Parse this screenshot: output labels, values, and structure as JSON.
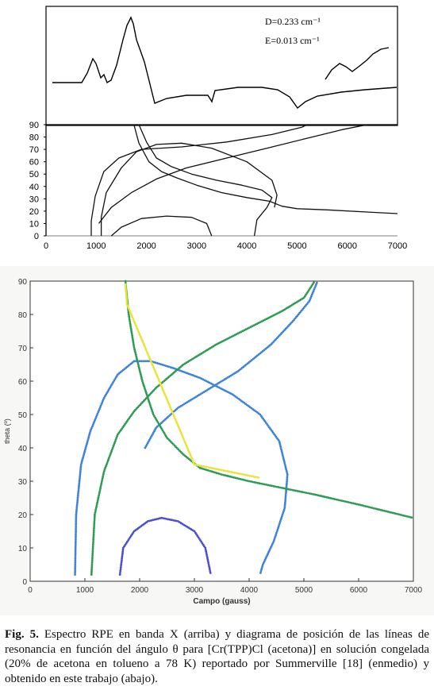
{
  "spectrum": {
    "annotation_d": "D=0.233 cm⁻¹",
    "annotation_e": "E=0.013 cm⁻¹"
  },
  "chart_data": [
    {
      "type": "line",
      "title": "",
      "xlabel": "",
      "ylabel": "",
      "xlim": [
        0,
        7000
      ],
      "ylim": [
        0,
        90
      ],
      "x_ticks": [
        0,
        1000,
        2000,
        3000,
        4000,
        5000,
        6000,
        7000
      ],
      "y_ticks": [
        0,
        10,
        20,
        30,
        40,
        50,
        60,
        70,
        80,
        90
      ],
      "series": [
        {
          "color": "#111111",
          "points": [
            [
              1750,
              90
            ],
            [
              1850,
              75
            ],
            [
              2050,
              60
            ],
            [
              2300,
              52
            ],
            [
              2600,
              47
            ],
            [
              3000,
              41
            ],
            [
              3500,
              35
            ],
            [
              4000,
              31
            ],
            [
              4450,
              28
            ],
            [
              4700,
              24
            ],
            [
              5000,
              22
            ],
            [
              5600,
              21
            ],
            [
              6500,
              19
            ],
            [
              7000,
              18
            ]
          ]
        },
        {
          "color": "#111111",
          "points": [
            [
              1850,
              90
            ],
            [
              2000,
              76
            ],
            [
              2200,
              63
            ],
            [
              2500,
              56
            ],
            [
              2900,
              50
            ],
            [
              3400,
              45
            ],
            [
              3900,
              41
            ],
            [
              4300,
              37
            ],
            [
              4500,
              31
            ],
            [
              4400,
              23
            ],
            [
              4200,
              13
            ],
            [
              4150,
              0
            ]
          ]
        },
        {
          "color": "#111111",
          "points": [
            [
              1100,
              0
            ],
            [
              1100,
              15
            ],
            [
              1200,
              35
            ],
            [
              1500,
              55
            ],
            [
              1800,
              68
            ],
            [
              2200,
              74
            ],
            [
              2700,
              75
            ],
            [
              3300,
              71
            ],
            [
              4000,
              60
            ],
            [
              4500,
              45
            ],
            [
              4600,
              33
            ],
            [
              4550,
              23
            ]
          ]
        },
        {
          "color": "#111111",
          "points": [
            [
              900,
              0
            ],
            [
              900,
              12
            ],
            [
              980,
              32
            ],
            [
              1150,
              52
            ],
            [
              1450,
              63
            ],
            [
              1900,
              70
            ],
            [
              2700,
              72
            ],
            [
              3600,
              76
            ],
            [
              4500,
              82
            ],
            [
              5100,
              88
            ],
            [
              5200,
              90
            ]
          ]
        },
        {
          "color": "#111111",
          "points": [
            [
              1050,
              10
            ],
            [
              1300,
              23
            ],
            [
              1700,
              35
            ],
            [
              2200,
              46
            ],
            [
              2800,
              55
            ],
            [
              3600,
              63
            ],
            [
              4400,
              71
            ],
            [
              5200,
              79
            ],
            [
              5900,
              86
            ],
            [
              6400,
              90
            ]
          ]
        },
        {
          "color": "#111111",
          "points": [
            [
              1300,
              0
            ],
            [
              1500,
              7
            ],
            [
              1900,
              14
            ],
            [
              2400,
              16
            ],
            [
              2900,
              15
            ],
            [
              3200,
              10
            ],
            [
              3300,
              0
            ]
          ]
        }
      ]
    },
    {
      "type": "scatter",
      "title": "",
      "xlabel": "Campo (gauss)",
      "ylabel": "theta (º)",
      "xlim": [
        0,
        7000
      ],
      "ylim": [
        0,
        90
      ],
      "x_ticks": [
        0,
        1000,
        2000,
        3000,
        4000,
        5000,
        6000,
        7000
      ],
      "y_ticks": [
        0,
        10,
        20,
        30,
        40,
        50,
        60,
        70,
        80,
        90
      ],
      "series": [
        {
          "color": "#3f83d8",
          "points": [
            [
              820,
              2
            ],
            [
              840,
              20
            ],
            [
              930,
              35
            ],
            [
              1100,
              45
            ],
            [
              1350,
              55
            ],
            [
              1600,
              62
            ],
            [
              1900,
              66
            ],
            [
              2200,
              66
            ],
            [
              2600,
              64
            ],
            [
              3100,
              61
            ],
            [
              3700,
              56
            ],
            [
              4200,
              50
            ],
            [
              4550,
              42
            ],
            [
              4700,
              32
            ],
            [
              4650,
              22
            ],
            [
              4450,
              12
            ],
            [
              4250,
              5
            ],
            [
              4200,
              2
            ]
          ]
        },
        {
          "color": "#3f83d8",
          "points": [
            [
              2100,
              40
            ],
            [
              2300,
              46
            ],
            [
              2700,
              52
            ],
            [
              3200,
              57
            ],
            [
              3800,
              63
            ],
            [
              4400,
              71
            ],
            [
              4800,
              78
            ],
            [
              5100,
              84
            ],
            [
              5250,
              90
            ]
          ]
        },
        {
          "color": "#2f9a55",
          "points": [
            [
              1120,
              2
            ],
            [
              1180,
              20
            ],
            [
              1350,
              33
            ],
            [
              1600,
              44
            ],
            [
              1900,
              51
            ],
            [
              2300,
              58
            ],
            [
              2800,
              65
            ],
            [
              3400,
              71
            ],
            [
              4000,
              76
            ],
            [
              4600,
              81
            ],
            [
              5000,
              85
            ],
            [
              5200,
              90
            ]
          ]
        },
        {
          "color": "#2f9a55",
          "points": [
            [
              1740,
              90
            ],
            [
              1800,
              80
            ],
            [
              1900,
              70
            ],
            [
              2050,
              60
            ],
            [
              2250,
              50
            ],
            [
              2500,
              43
            ],
            [
              2800,
              38
            ],
            [
              3100,
              34
            ],
            [
              3500,
              32
            ],
            [
              4000,
              30
            ],
            [
              4600,
              28
            ],
            [
              5200,
              26
            ],
            [
              6000,
              23
            ],
            [
              7000,
              19
            ]
          ]
        },
        {
          "color": "#e8e43c",
          "points": [
            [
              1740,
              89
            ],
            [
              1770,
              83
            ],
            [
              3000,
              35
            ],
            [
              3600,
              33
            ],
            [
              4200,
              31
            ]
          ]
        },
        {
          "color": "#4a4fd0",
          "points": [
            [
              1640,
              2
            ],
            [
              1700,
              10
            ],
            [
              1900,
              15
            ],
            [
              2150,
              18
            ],
            [
              2400,
              19
            ],
            [
              2700,
              18
            ],
            [
              3000,
              15
            ],
            [
              3200,
              10
            ],
            [
              3300,
              2
            ]
          ]
        }
      ]
    }
  ],
  "caption": {
    "label": "Fig. 5.",
    "text": " Espectro RPE en banda X (arriba) y diagrama de posición de las líneas de resonancia en función del ángulo θ para [Cr(TPP)Cl (acetona)] en solución congelada (20% de acetona en tolueno a 78 K) reportado por Summerville [18] (enmedio) y obtenido en este trabajo (abajo)."
  }
}
